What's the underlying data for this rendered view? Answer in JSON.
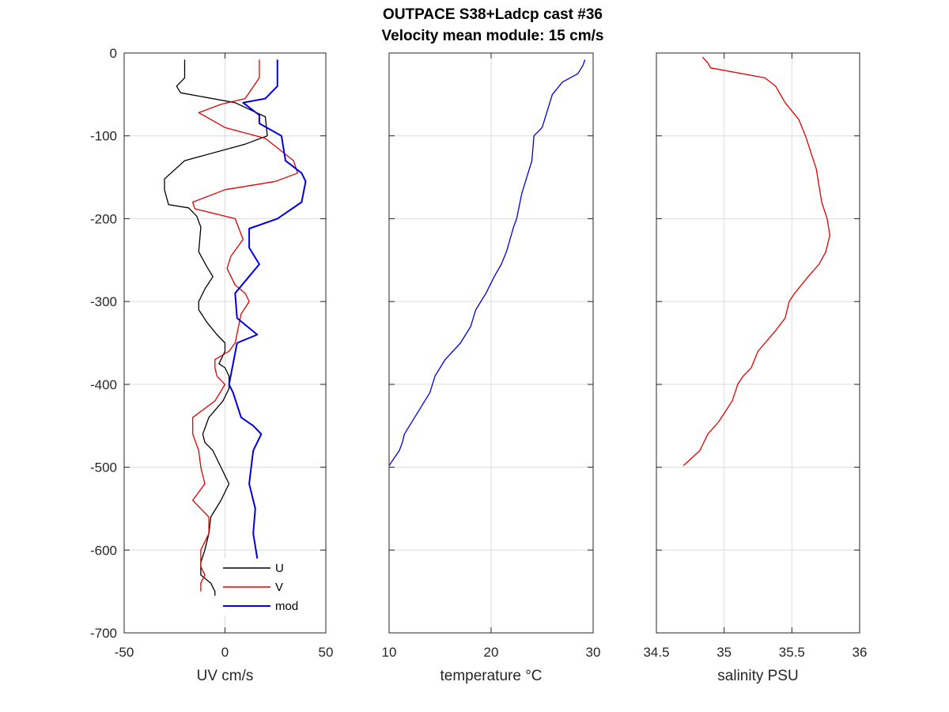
{
  "chart_data": [
    {
      "type": "line",
      "title": [
        "OUTPACE S38+Ladcp cast #36",
        "Velocity mean module:  15 cm/s"
      ],
      "xlabel": "UV cm/s",
      "ylabel": "",
      "xlim": [
        -50,
        50
      ],
      "ylim": [
        -700,
        0
      ],
      "xticks": [
        "-50",
        "0",
        "50"
      ],
      "yticks": [
        "0",
        "-100",
        "-200",
        "-300",
        "-400",
        "-500",
        "-600",
        "-700"
      ],
      "grid": true,
      "legend": {
        "placement": "bottom-right",
        "entries": [
          "U",
          "V",
          "mod"
        ]
      },
      "series": [
        {
          "name": "U",
          "color": "#000000",
          "x": [
            -20,
            -20,
            -24,
            -22,
            5,
            20,
            21,
            10,
            -20,
            -30,
            -30,
            -28,
            -18,
            -14,
            -12,
            -13,
            -9,
            -6,
            -10,
            -13,
            -13,
            -9,
            -4,
            0,
            0,
            -3,
            0,
            2,
            2,
            -1,
            -8,
            -11,
            -10,
            -6,
            -2,
            2,
            -2,
            -7,
            -8,
            -10,
            -12,
            -12,
            -7,
            -5,
            -5
          ],
          "y": [
            -8,
            -30,
            -40,
            -48,
            -60,
            -77,
            -100,
            -110,
            -130,
            -152,
            -165,
            -183,
            -187,
            -197,
            -210,
            -240,
            -258,
            -270,
            -285,
            -300,
            -310,
            -325,
            -340,
            -350,
            -360,
            -375,
            -380,
            -390,
            -405,
            -420,
            -440,
            -460,
            -470,
            -480,
            -500,
            -520,
            -540,
            -560,
            -580,
            -600,
            -615,
            -630,
            -640,
            -650,
            -655
          ]
        },
        {
          "name": "V",
          "color": "#e00000",
          "x": [
            17,
            17,
            10,
            -2,
            -13,
            0,
            20,
            34,
            36,
            25,
            0,
            -16,
            -15,
            5,
            9,
            3,
            1,
            5,
            10,
            12,
            8,
            5,
            2,
            -5,
            -5,
            -4,
            0,
            -5,
            -16,
            -16,
            -13,
            -12,
            -10,
            -16,
            -8,
            -8,
            -12,
            -12,
            -10,
            -12,
            -12
          ],
          "y": [
            -8,
            -30,
            -55,
            -62,
            -72,
            -90,
            -103,
            -130,
            -145,
            -155,
            -165,
            -180,
            -188,
            -200,
            -225,
            -245,
            -260,
            -280,
            -290,
            -300,
            -315,
            -350,
            -360,
            -370,
            -380,
            -390,
            -400,
            -420,
            -440,
            -460,
            -480,
            -500,
            -520,
            -540,
            -560,
            -580,
            -600,
            -620,
            -630,
            -640,
            -650
          ]
        },
        {
          "name": "mod",
          "color": "#0000e0",
          "x": [
            26,
            26,
            20,
            9,
            17,
            17,
            28,
            30,
            38,
            40,
            38,
            26,
            12,
            12,
            17,
            5,
            6,
            16,
            6,
            2,
            4,
            8,
            14,
            18,
            14,
            12,
            15,
            14,
            16,
            14,
            10,
            10,
            14,
            12,
            12
          ],
          "y": [
            -8,
            -40,
            -55,
            -60,
            -75,
            -85,
            -100,
            -130,
            -145,
            -155,
            -180,
            -200,
            -212,
            -235,
            -255,
            -290,
            -320,
            -340,
            -350,
            -400,
            -410,
            -440,
            -450,
            -460,
            -480,
            -520,
            -550,
            -580,
            -610,
            -620,
            -625,
            -630,
            -640,
            -645,
            -650
          ]
        }
      ]
    },
    {
      "type": "line",
      "title": "",
      "xlabel": "temperature °C",
      "ylabel": "",
      "xlim": [
        10,
        30
      ],
      "ylim": [
        -700,
        0
      ],
      "xticks": [
        "10",
        "20",
        "30"
      ],
      "grid": true,
      "series": [
        {
          "name": "",
          "color": "#0000e0",
          "x": [
            29.2,
            29.0,
            28.5,
            27.0,
            26.0,
            25.5,
            25.0,
            24.2,
            24.0,
            23.5,
            23.0,
            22.5,
            22.2,
            21.5,
            21.0,
            20.3,
            19.5,
            18.5,
            18.0,
            17.0,
            15.5,
            14.5,
            14.0,
            13.5,
            13.0,
            12.0,
            11.5,
            11.3,
            11.0,
            10.0
          ],
          "y": [
            -8,
            -15,
            -25,
            -35,
            -50,
            -70,
            -90,
            -100,
            -130,
            -150,
            -170,
            -200,
            -210,
            -240,
            -255,
            -270,
            -290,
            -310,
            -330,
            -350,
            -370,
            -390,
            -410,
            -420,
            -430,
            -450,
            -460,
            -470,
            -480,
            -498
          ]
        }
      ]
    },
    {
      "type": "line",
      "title": "",
      "xlabel": "salinity PSU",
      "ylabel": "",
      "xlim": [
        34.5,
        36
      ],
      "ylim": [
        -700,
        0
      ],
      "xticks": [
        "34.5",
        "35",
        "35.5",
        "36"
      ],
      "grid": true,
      "series": [
        {
          "name": "",
          "color": "#e00000",
          "x": [
            34.84,
            34.88,
            34.9,
            35.3,
            35.38,
            35.45,
            35.55,
            35.6,
            35.68,
            35.7,
            35.72,
            35.76,
            35.78,
            35.75,
            35.7,
            35.62,
            35.52,
            35.48,
            35.45,
            35.38,
            35.25,
            35.2,
            35.14,
            35.1,
            35.06,
            35.0,
            34.96,
            34.88,
            34.82,
            34.7
          ],
          "y": [
            -5,
            -12,
            -18,
            -30,
            -40,
            -60,
            -80,
            -100,
            -140,
            -160,
            -180,
            -200,
            -220,
            -240,
            -255,
            -270,
            -290,
            -300,
            -320,
            -335,
            -360,
            -380,
            -390,
            -400,
            -420,
            -435,
            -445,
            -460,
            -480,
            -498
          ]
        }
      ]
    }
  ]
}
